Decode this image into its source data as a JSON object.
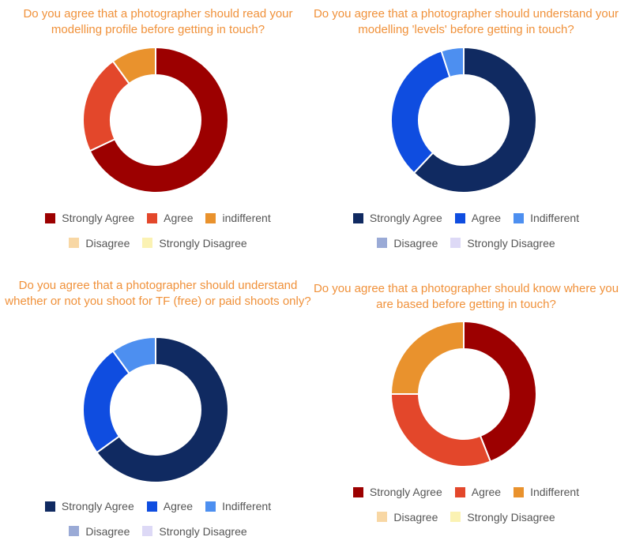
{
  "chart_data": [
    {
      "type": "pie",
      "title": "Do you agree that a photographer should read your modelling profile before getting in touch?",
      "categories": [
        "Strongly Agree",
        "Agree",
        "indifferent",
        "Disagree",
        "Strongly Disagree"
      ],
      "values": [
        68,
        22,
        10,
        0,
        0
      ],
      "colors": [
        "#9c0000",
        "#e3472b",
        "#e9922d",
        "#f8d7a4",
        "#fbf2b3"
      ],
      "legend_position": "bottom"
    },
    {
      "type": "pie",
      "title": "Do you agree that a photographer should understand your modelling 'levels' before getting in touch?",
      "categories": [
        "Strongly Agree",
        "Agree",
        "Indifferent",
        "Disagree",
        "Strongly Disagree"
      ],
      "values": [
        62,
        33,
        5,
        0,
        0
      ],
      "colors": [
        "#102a61",
        "#0f4de0",
        "#4d8ff0",
        "#9aaad6",
        "#ddd9f6"
      ],
      "legend_position": "bottom"
    },
    {
      "type": "pie",
      "title": "Do you agree that a photographer should understand whether or not you shoot for TF (free) or paid shoots only?",
      "categories": [
        "Strongly Agree",
        "Agree",
        "Indifferent",
        "Disagree",
        "Strongly Disagree"
      ],
      "values": [
        65,
        25,
        10,
        0,
        0
      ],
      "colors": [
        "#102a61",
        "#0f4de0",
        "#4d8ff0",
        "#9aaad6",
        "#ddd9f6"
      ],
      "legend_position": "bottom"
    },
    {
      "type": "pie",
      "title": "Do you agree that a photographer should know where you are based before getting in touch?",
      "categories": [
        "Strongly Agree",
        "Agree",
        "Indifferent",
        "Disagree",
        "Strongly Disagree"
      ],
      "values": [
        44,
        31,
        25,
        0,
        0
      ],
      "colors": [
        "#9c0000",
        "#e3472b",
        "#e9922d",
        "#f8d7a4",
        "#fbf2b3"
      ],
      "legend_position": "bottom"
    }
  ]
}
